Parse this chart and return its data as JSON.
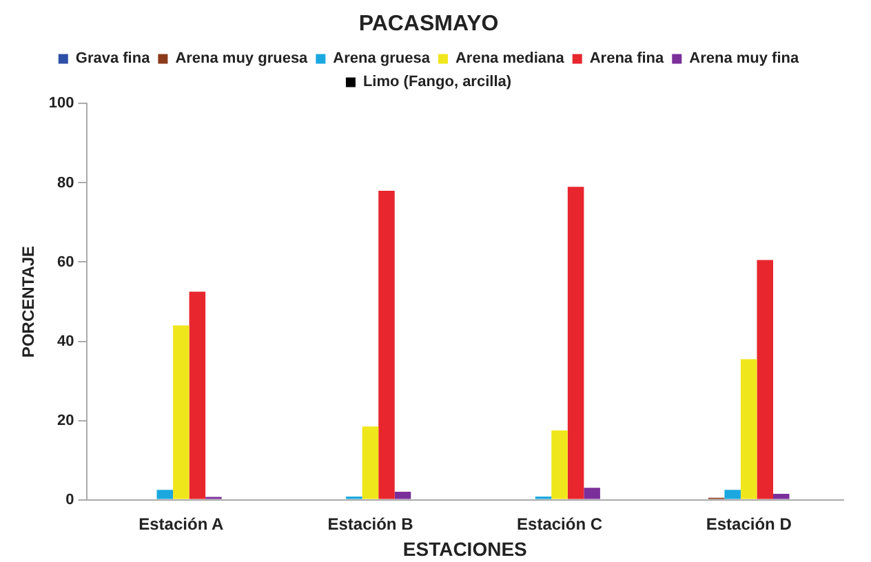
{
  "chart_data": {
    "type": "bar",
    "title": "PACASMAYO",
    "xlabel": "ESTACIONES",
    "ylabel": "PORCENTAJE",
    "categories": [
      "Estación A",
      "Estación B",
      "Estación C",
      "Estación D"
    ],
    "series": [
      {
        "name": "Grava fina",
        "color": "#2e4fa8",
        "values": [
          0,
          0,
          0,
          0
        ]
      },
      {
        "name": "Arena muy gruesa",
        "color": "#8b3a1a",
        "values": [
          null,
          null,
          0,
          0.5
        ]
      },
      {
        "name": "Arena gruesa",
        "color": "#1ba8e0",
        "values": [
          2.5,
          0.8,
          0.8,
          2.5
        ]
      },
      {
        "name": "Arena mediana",
        "color": "#f0e61c",
        "values": [
          44,
          18.5,
          17.5,
          35.5
        ]
      },
      {
        "name": "Arena fina",
        "color": "#e8262e",
        "values": [
          52.5,
          78,
          79,
          60.5
        ]
      },
      {
        "name": "Arena muy fina",
        "color": "#7a2f9a",
        "values": [
          0.7,
          2,
          3,
          1.5
        ]
      },
      {
        "name": "Limo (Fango, arcilla)",
        "color": "#000000",
        "values": [
          0,
          0,
          0,
          0
        ]
      }
    ],
    "ylim": [
      0,
      100
    ],
    "yticks": [
      0,
      20,
      40,
      60,
      80,
      100
    ],
    "grid": false,
    "legend": "top"
  }
}
